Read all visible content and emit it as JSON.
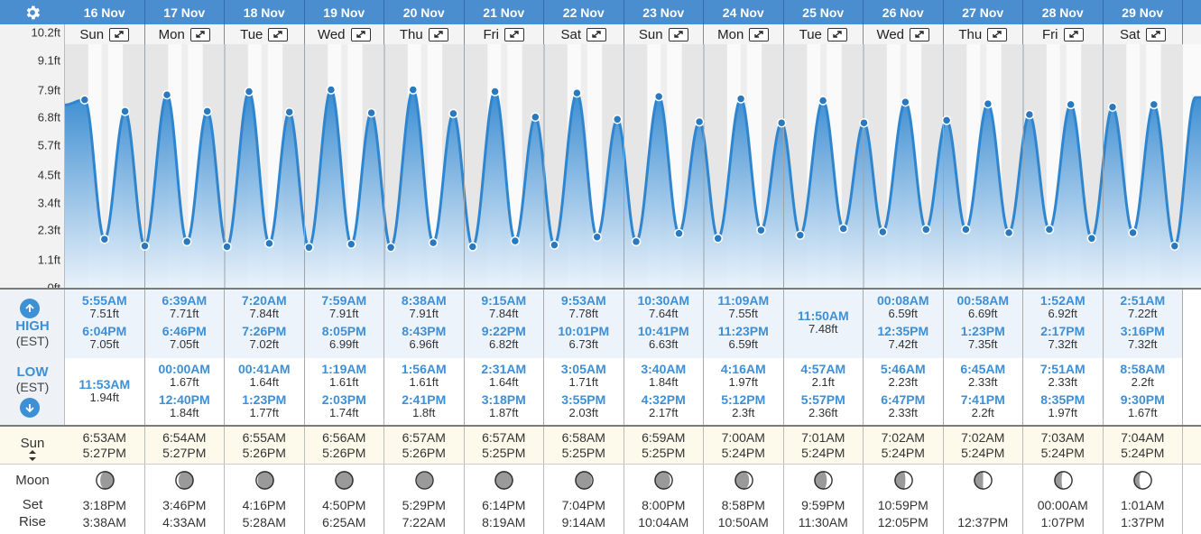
{
  "header": {
    "settings_icon": "gear-icon",
    "days": [
      {
        "date": "16 Nov",
        "dow": "Sun"
      },
      {
        "date": "17 Nov",
        "dow": "Mon"
      },
      {
        "date": "18 Nov",
        "dow": "Tue"
      },
      {
        "date": "19 Nov",
        "dow": "Wed"
      },
      {
        "date": "20 Nov",
        "dow": "Thu"
      },
      {
        "date": "21 Nov",
        "dow": "Fri"
      },
      {
        "date": "22 Nov",
        "dow": "Sat"
      },
      {
        "date": "23 Nov",
        "dow": "Sun"
      },
      {
        "date": "24 Nov",
        "dow": "Mon"
      },
      {
        "date": "25 Nov",
        "dow": "Tue"
      },
      {
        "date": "26 Nov",
        "dow": "Wed"
      },
      {
        "date": "27 Nov",
        "dow": "Thu"
      },
      {
        "date": "28 Nov",
        "dow": "Fri"
      },
      {
        "date": "29 Nov",
        "dow": "Sat"
      }
    ]
  },
  "chart": {
    "y_ticks": [
      "10.2ft",
      "9.1ft",
      "7.9ft",
      "6.8ft",
      "5.7ft",
      "4.5ft",
      "3.4ft",
      "2.3ft",
      "1.1ft",
      "0ft"
    ],
    "y_tick_values": [
      10.2,
      9.1,
      7.9,
      6.8,
      5.7,
      4.5,
      3.4,
      2.3,
      1.1,
      0
    ],
    "ylim": [
      0,
      10.2
    ],
    "colors": {
      "line": "#2f86cf",
      "fill_top": "#2f86cf",
      "fill_bottom": "#e8f2fb",
      "night": "#e6e6e6",
      "day": "#fafafa"
    }
  },
  "tides": {
    "high_label": "HIGH",
    "high_sub": "(EST)",
    "low_label": "LOW",
    "low_sub": "(EST)",
    "days": [
      {
        "highs": [
          {
            "t": "5:55AM",
            "h": "7.51ft"
          },
          {
            "t": "6:04PM",
            "h": "7.05ft"
          }
        ],
        "lows": [
          {
            "t": "11:53AM",
            "h": "1.94ft"
          }
        ]
      },
      {
        "highs": [
          {
            "t": "6:39AM",
            "h": "7.71ft"
          },
          {
            "t": "6:46PM",
            "h": "7.05ft"
          }
        ],
        "lows": [
          {
            "t": "00:00AM",
            "h": "1.67ft"
          },
          {
            "t": "12:40PM",
            "h": "1.84ft"
          }
        ]
      },
      {
        "highs": [
          {
            "t": "7:20AM",
            "h": "7.84ft"
          },
          {
            "t": "7:26PM",
            "h": "7.02ft"
          }
        ],
        "lows": [
          {
            "t": "00:41AM",
            "h": "1.64ft"
          },
          {
            "t": "1:23PM",
            "h": "1.77ft"
          }
        ]
      },
      {
        "highs": [
          {
            "t": "7:59AM",
            "h": "7.91ft"
          },
          {
            "t": "8:05PM",
            "h": "6.99ft"
          }
        ],
        "lows": [
          {
            "t": "1:19AM",
            "h": "1.61ft"
          },
          {
            "t": "2:03PM",
            "h": "1.74ft"
          }
        ]
      },
      {
        "highs": [
          {
            "t": "8:38AM",
            "h": "7.91ft"
          },
          {
            "t": "8:43PM",
            "h": "6.96ft"
          }
        ],
        "lows": [
          {
            "t": "1:56AM",
            "h": "1.61ft"
          },
          {
            "t": "2:41PM",
            "h": "1.8ft"
          }
        ]
      },
      {
        "highs": [
          {
            "t": "9:15AM",
            "h": "7.84ft"
          },
          {
            "t": "9:22PM",
            "h": "6.82ft"
          }
        ],
        "lows": [
          {
            "t": "2:31AM",
            "h": "1.64ft"
          },
          {
            "t": "3:18PM",
            "h": "1.87ft"
          }
        ]
      },
      {
        "highs": [
          {
            "t": "9:53AM",
            "h": "7.78ft"
          },
          {
            "t": "10:01PM",
            "h": "6.73ft"
          }
        ],
        "lows": [
          {
            "t": "3:05AM",
            "h": "1.71ft"
          },
          {
            "t": "3:55PM",
            "h": "2.03ft"
          }
        ]
      },
      {
        "highs": [
          {
            "t": "10:30AM",
            "h": "7.64ft"
          },
          {
            "t": "10:41PM",
            "h": "6.63ft"
          }
        ],
        "lows": [
          {
            "t": "3:40AM",
            "h": "1.84ft"
          },
          {
            "t": "4:32PM",
            "h": "2.17ft"
          }
        ]
      },
      {
        "highs": [
          {
            "t": "11:09AM",
            "h": "7.55ft"
          },
          {
            "t": "11:23PM",
            "h": "6.59ft"
          }
        ],
        "lows": [
          {
            "t": "4:16AM",
            "h": "1.97ft"
          },
          {
            "t": "5:12PM",
            "h": "2.3ft"
          }
        ]
      },
      {
        "highs": [
          {
            "t": "11:50AM",
            "h": "7.48ft"
          }
        ],
        "lows": [
          {
            "t": "4:57AM",
            "h": "2.1ft"
          },
          {
            "t": "5:57PM",
            "h": "2.36ft"
          }
        ]
      },
      {
        "highs": [
          {
            "t": "00:08AM",
            "h": "6.59ft"
          },
          {
            "t": "12:35PM",
            "h": "7.42ft"
          }
        ],
        "lows": [
          {
            "t": "5:46AM",
            "h": "2.23ft"
          },
          {
            "t": "6:47PM",
            "h": "2.33ft"
          }
        ]
      },
      {
        "highs": [
          {
            "t": "00:58AM",
            "h": "6.69ft"
          },
          {
            "t": "1:23PM",
            "h": "7.35ft"
          }
        ],
        "lows": [
          {
            "t": "6:45AM",
            "h": "2.33ft"
          },
          {
            "t": "7:41PM",
            "h": "2.2ft"
          }
        ]
      },
      {
        "highs": [
          {
            "t": "1:52AM",
            "h": "6.92ft"
          },
          {
            "t": "2:17PM",
            "h": "7.32ft"
          }
        ],
        "lows": [
          {
            "t": "7:51AM",
            "h": "2.33ft"
          },
          {
            "t": "8:35PM",
            "h": "1.97ft"
          }
        ]
      },
      {
        "highs": [
          {
            "t": "2:51AM",
            "h": "7.22ft"
          },
          {
            "t": "3:16PM",
            "h": "7.32ft"
          }
        ],
        "lows": [
          {
            "t": "8:58AM",
            "h": "2.2ft"
          },
          {
            "t": "9:30PM",
            "h": "1.67ft"
          }
        ]
      }
    ]
  },
  "sun": {
    "label": "Sun",
    "days": [
      {
        "rise": "6:53AM",
        "set": "5:27PM"
      },
      {
        "rise": "6:54AM",
        "set": "5:27PM"
      },
      {
        "rise": "6:55AM",
        "set": "5:26PM"
      },
      {
        "rise": "6:56AM",
        "set": "5:26PM"
      },
      {
        "rise": "6:57AM",
        "set": "5:26PM"
      },
      {
        "rise": "6:57AM",
        "set": "5:25PM"
      },
      {
        "rise": "6:58AM",
        "set": "5:25PM"
      },
      {
        "rise": "6:59AM",
        "set": "5:25PM"
      },
      {
        "rise": "7:00AM",
        "set": "5:24PM"
      },
      {
        "rise": "7:01AM",
        "set": "5:24PM"
      },
      {
        "rise": "7:02AM",
        "set": "5:24PM"
      },
      {
        "rise": "7:02AM",
        "set": "5:24PM"
      },
      {
        "rise": "7:03AM",
        "set": "5:24PM"
      },
      {
        "rise": "7:04AM",
        "set": "5:24PM"
      }
    ]
  },
  "moon": {
    "label": "Moon",
    "set_label": "Set",
    "rise_label": "Rise",
    "days": [
      {
        "set": "3:18PM",
        "rise": "3:38AM",
        "lit": 0.22,
        "waxing": false
      },
      {
        "set": "3:46PM",
        "rise": "4:33AM",
        "lit": 0.15,
        "waxing": false
      },
      {
        "set": "4:16PM",
        "rise": "5:28AM",
        "lit": 0.08,
        "waxing": false
      },
      {
        "set": "4:50PM",
        "rise": "6:25AM",
        "lit": 0.03,
        "waxing": false
      },
      {
        "set": "5:29PM",
        "rise": "7:22AM",
        "lit": 0.0,
        "waxing": true
      },
      {
        "set": "6:14PM",
        "rise": "8:19AM",
        "lit": 0.02,
        "waxing": true
      },
      {
        "set": "7:04PM",
        "rise": "9:14AM",
        "lit": 0.06,
        "waxing": true
      },
      {
        "set": "8:00PM",
        "rise": "10:04AM",
        "lit": 0.12,
        "waxing": true
      },
      {
        "set": "8:58PM",
        "rise": "10:50AM",
        "lit": 0.2,
        "waxing": true
      },
      {
        "set": "9:59PM",
        "rise": "11:30AM",
        "lit": 0.3,
        "waxing": true
      },
      {
        "set": "10:59PM",
        "rise": "12:05PM",
        "lit": 0.4,
        "waxing": true
      },
      {
        "set": "",
        "rise": "12:37PM",
        "lit": 0.5,
        "waxing": true
      },
      {
        "set": "00:00AM",
        "rise": "1:07PM",
        "lit": 0.6,
        "waxing": true
      },
      {
        "set": "1:01AM",
        "rise": "1:37PM",
        "lit": 0.7,
        "waxing": true
      }
    ]
  }
}
